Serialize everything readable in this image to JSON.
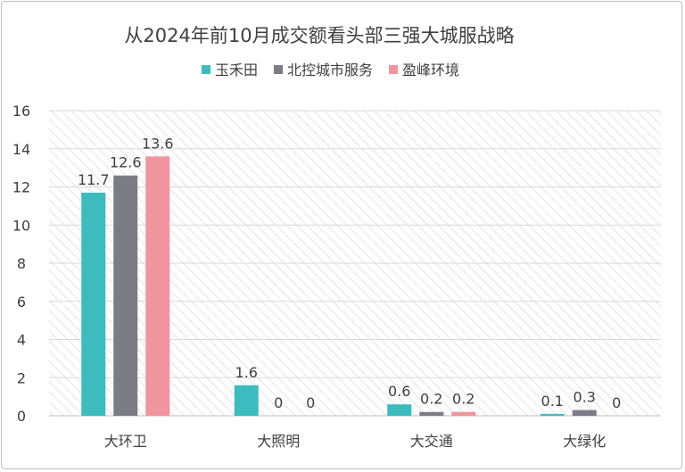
{
  "chart_data": {
    "type": "bar",
    "title": "从2024年前10月成交额看头部三强大城服战略",
    "categories": [
      "大环卫",
      "大照明",
      "大交通",
      "大绿化"
    ],
    "series": [
      {
        "name": "玉禾田",
        "values": [
          11.7,
          1.6,
          0.6,
          0.1
        ],
        "color": "#3cbcbf"
      },
      {
        "name": "北控城市服务",
        "values": [
          12.6,
          0,
          0.2,
          0.3
        ],
        "color": "#7b7c86"
      },
      {
        "name": "盈峰环境",
        "values": [
          13.6,
          0,
          0.2,
          0
        ],
        "color": "#f0949e"
      }
    ],
    "ylim": [
      0,
      16
    ],
    "yticks": [
      0,
      2,
      4,
      6,
      8,
      10,
      12,
      14,
      16
    ],
    "grid": true,
    "legend": "top"
  }
}
